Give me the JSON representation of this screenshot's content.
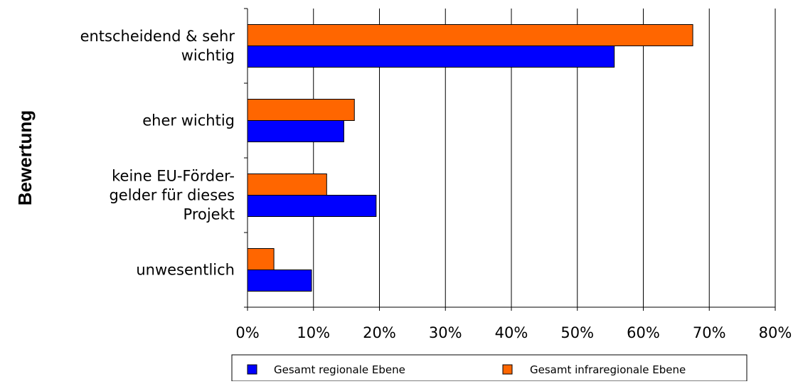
{
  "chart_data": {
    "type": "bar",
    "orientation": "horizontal",
    "ylabel": "Bewertung",
    "xlabel": "",
    "title": "",
    "categories": [
      [
        "entscheidend & sehr",
        "wichtig"
      ],
      [
        "eher wichtig"
      ],
      [
        "keine EU-Förder-",
        "gelder für dieses",
        "Projekt"
      ],
      [
        "unwesentlich"
      ]
    ],
    "series": [
      {
        "name": "Gesamt infraregionale Ebene",
        "color": "#ff6600",
        "values": [
          67.5,
          16.2,
          12.0,
          4.0
        ]
      },
      {
        "name": "Gesamt regionale Ebene",
        "color": "#0000ff",
        "values": [
          55.6,
          14.6,
          19.5,
          9.7
        ]
      }
    ],
    "xlim": [
      0,
      80
    ],
    "xticks": [
      "0%",
      "10%",
      "20%",
      "30%",
      "40%",
      "50%",
      "60%",
      "70%",
      "80%"
    ],
    "grid": "vertical",
    "legend": {
      "position": "bottom",
      "entries": [
        "Gesamt regionale Ebene",
        "Gesamt infraregionale Ebene"
      ]
    }
  }
}
